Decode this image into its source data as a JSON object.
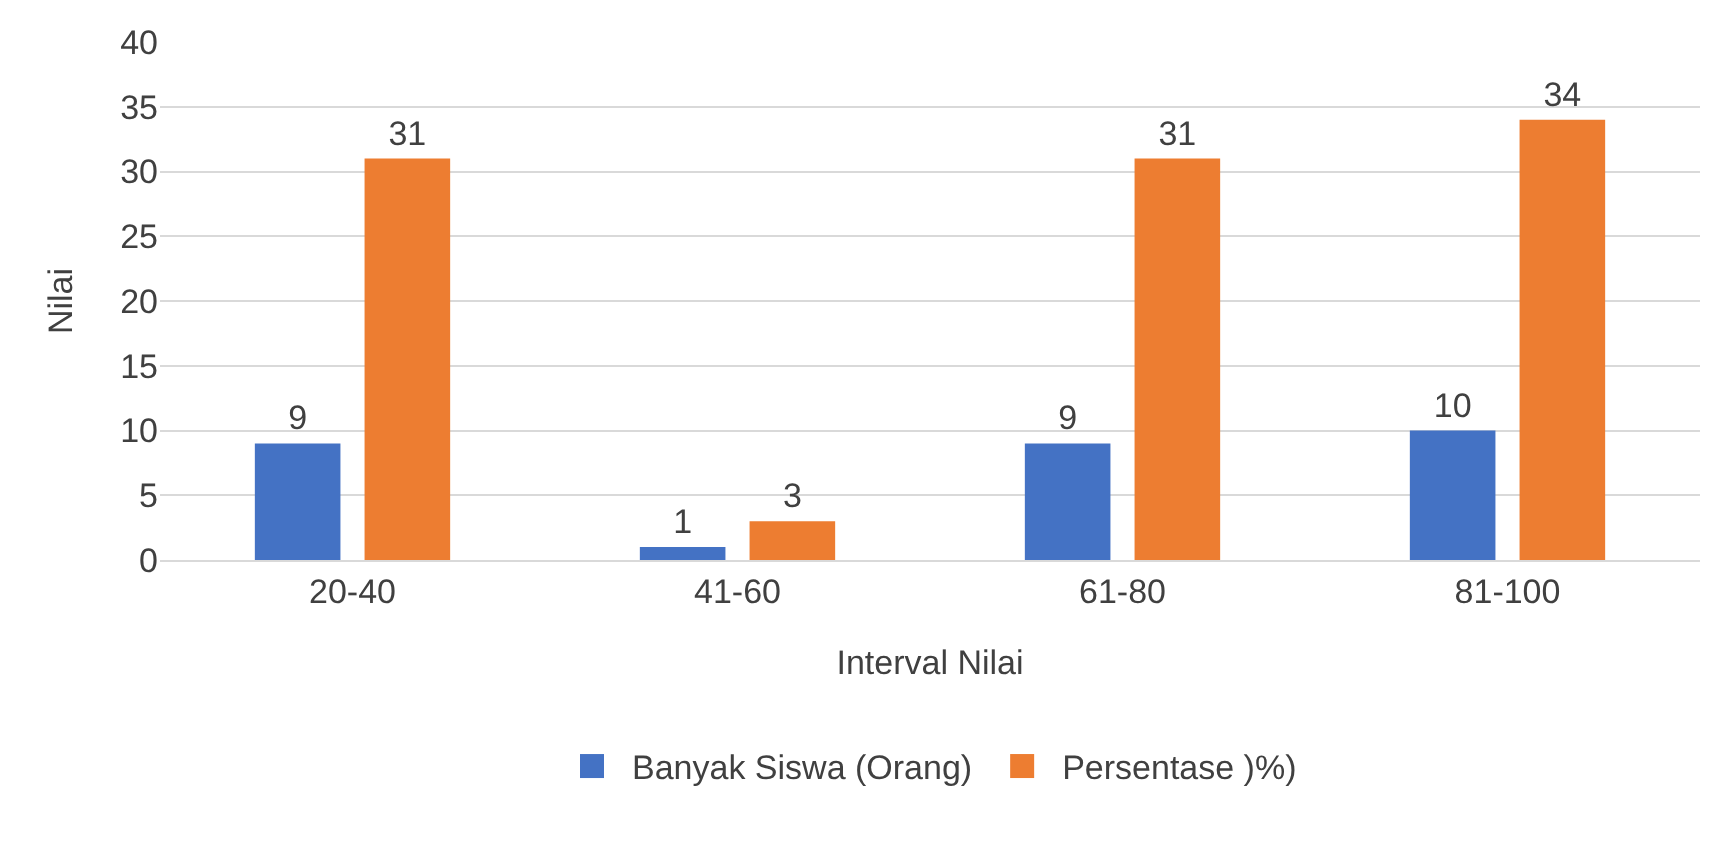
{
  "chart_data": {
    "type": "bar",
    "xlabel": "Interval Nilai",
    "ylabel": "Nilai",
    "categories": [
      "20-40",
      "41-60",
      "61-80",
      "81-100"
    ],
    "series": [
      {
        "name": "Banyak Siswa (Orang)",
        "color": "#4472c4",
        "values": [
          9,
          1,
          9,
          10
        ]
      },
      {
        "name": "Persentase )%)",
        "color": "#ed7d31",
        "values": [
          31,
          3,
          31,
          34
        ]
      }
    ],
    "ylim": [
      0,
      40
    ],
    "yticks": [
      0,
      5,
      10,
      15,
      20,
      25,
      30,
      35,
      40
    ],
    "grid": "y",
    "legend": "bottom",
    "data_labels": true
  }
}
